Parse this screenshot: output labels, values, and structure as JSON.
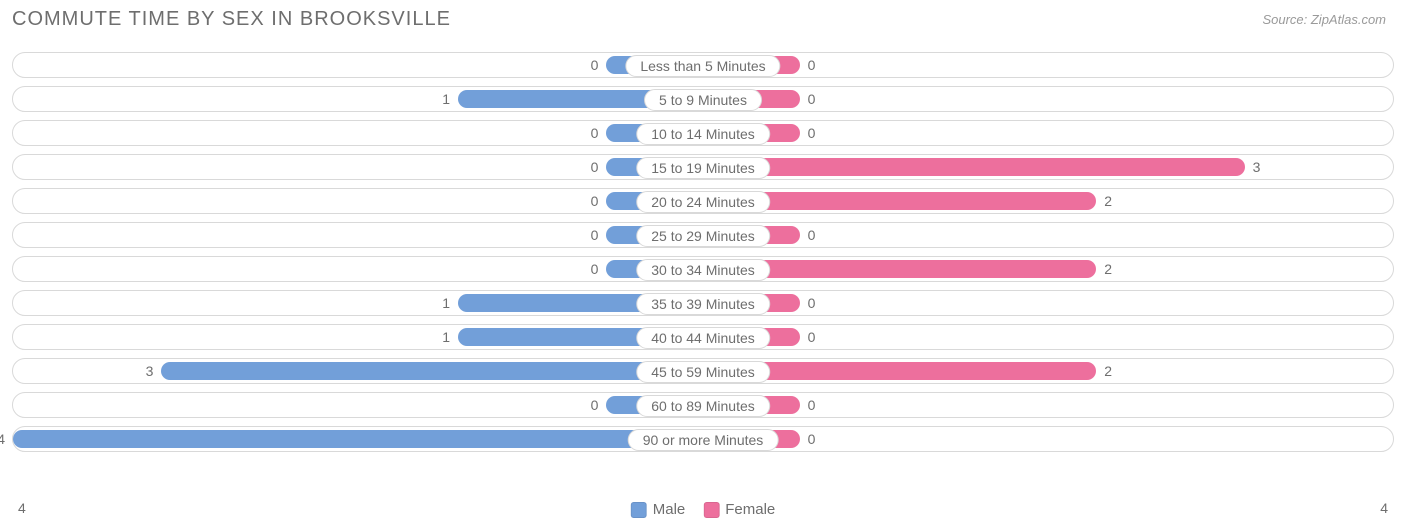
{
  "title": "COMMUTE TIME BY SEX IN BROOKSVILLE",
  "source": "Source: ZipAtlas.com",
  "chart": {
    "type": "diverging-bar",
    "background_color": "#ffffff",
    "track_border_color": "#d9d9d9",
    "label_text_color": "#6e6e6e",
    "male_color": "#729fd9",
    "female_color": "#ed6f9d",
    "min_bar_pct": 14,
    "max_value": 4,
    "categories": [
      {
        "label": "Less than 5 Minutes",
        "male": 0,
        "female": 0
      },
      {
        "label": "5 to 9 Minutes",
        "male": 1,
        "female": 0
      },
      {
        "label": "10 to 14 Minutes",
        "male": 0,
        "female": 0
      },
      {
        "label": "15 to 19 Minutes",
        "male": 0,
        "female": 3
      },
      {
        "label": "20 to 24 Minutes",
        "male": 0,
        "female": 2
      },
      {
        "label": "25 to 29 Minutes",
        "male": 0,
        "female": 0
      },
      {
        "label": "30 to 34 Minutes",
        "male": 0,
        "female": 2
      },
      {
        "label": "35 to 39 Minutes",
        "male": 1,
        "female": 0
      },
      {
        "label": "40 to 44 Minutes",
        "male": 1,
        "female": 0
      },
      {
        "label": "45 to 59 Minutes",
        "male": 3,
        "female": 2
      },
      {
        "label": "60 to 89 Minutes",
        "male": 0,
        "female": 0
      },
      {
        "label": "90 or more Minutes",
        "male": 4,
        "female": 0
      }
    ],
    "legend": {
      "male_label": "Male",
      "female_label": "Female"
    },
    "axis": {
      "left_max_label": "4",
      "right_max_label": "4"
    }
  }
}
